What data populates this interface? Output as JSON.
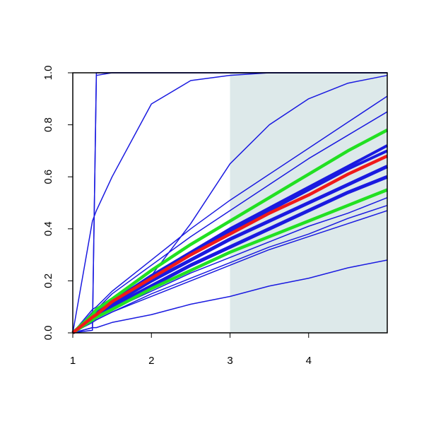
{
  "chart_data": {
    "type": "line",
    "x": [
      1,
      1.25,
      1.3,
      1.5,
      2,
      2.5,
      3,
      3.5,
      4,
      4.5,
      5
    ],
    "xlim": [
      1,
      5
    ],
    "xticks": [
      1,
      2,
      3,
      4
    ],
    "ylim": [
      0,
      1
    ],
    "yticks": [
      {
        "value": 0,
        "label": "0.0"
      },
      0.2,
      0.4,
      0.6,
      0.8,
      {
        "value": 1,
        "label": "1.0"
      }
    ],
    "shaded_xrange": [
      3,
      5
    ],
    "shade_color": "#dde9ea",
    "series": [
      {
        "color": "#1a1ae0",
        "width": 1.5,
        "values": [
          0,
          0.01,
          1,
          1,
          1,
          1,
          1,
          1,
          1,
          1,
          1
        ]
      },
      {
        "color": "#1a1ae0",
        "width": 1.5,
        "values": [
          0,
          0.02,
          0.99,
          1,
          1,
          1,
          1,
          1,
          1,
          1,
          1
        ]
      },
      {
        "color": "#1a1ae0",
        "width": 1.5,
        "values": [
          0,
          0.43,
          0.47,
          0.6,
          0.88,
          0.97,
          0.99,
          1,
          1,
          1,
          1
        ]
      },
      {
        "color": "#1a1ae0",
        "width": 1.5,
        "values": [
          0,
          0.05,
          0.06,
          0.1,
          0.22,
          0.42,
          0.65,
          0.8,
          0.9,
          0.96,
          0.99
        ]
      },
      {
        "color": "#1a1ae0",
        "width": 1.5,
        "values": [
          0,
          0.09,
          0.1,
          0.16,
          0.28,
          0.4,
          0.51,
          0.61,
          0.71,
          0.81,
          0.91
        ]
      },
      {
        "color": "#1a1ae0",
        "width": 1.5,
        "values": [
          0,
          0.08,
          0.09,
          0.15,
          0.26,
          0.37,
          0.47,
          0.57,
          0.67,
          0.76,
          0.85
        ]
      },
      {
        "color": "#1a1ae0",
        "width": 4,
        "values": [
          0,
          0.07,
          0.08,
          0.12,
          0.22,
          0.31,
          0.4,
          0.48,
          0.56,
          0.64,
          0.72
        ]
      },
      {
        "color": "#1a1ae0",
        "width": 4,
        "values": [
          0,
          0.07,
          0.08,
          0.12,
          0.22,
          0.3,
          0.39,
          0.47,
          0.55,
          0.63,
          0.7
        ]
      },
      {
        "color": "#1a1ae0",
        "width": 5,
        "values": [
          0,
          0.06,
          0.07,
          0.11,
          0.2,
          0.28,
          0.36,
          0.43,
          0.5,
          0.57,
          0.64
        ]
      },
      {
        "color": "#1a1ae0",
        "width": 5,
        "values": [
          0,
          0.06,
          0.07,
          0.1,
          0.18,
          0.26,
          0.33,
          0.4,
          0.47,
          0.54,
          0.6
        ]
      },
      {
        "color": "#1a1ae0",
        "width": 1.5,
        "values": [
          0,
          0.05,
          0.06,
          0.09,
          0.16,
          0.23,
          0.29,
          0.35,
          0.41,
          0.46,
          0.52
        ]
      },
      {
        "color": "#1a1ae0",
        "width": 1.5,
        "values": [
          0,
          0.05,
          0.05,
          0.08,
          0.15,
          0.21,
          0.27,
          0.33,
          0.38,
          0.44,
          0.49
        ]
      },
      {
        "color": "#1a1ae0",
        "width": 1.5,
        "values": [
          0,
          0.04,
          0.05,
          0.08,
          0.14,
          0.2,
          0.26,
          0.32,
          0.37,
          0.42,
          0.47
        ]
      },
      {
        "color": "#1a1ae0",
        "width": 1.5,
        "values": [
          0,
          0.02,
          0.02,
          0.04,
          0.07,
          0.11,
          0.14,
          0.18,
          0.21,
          0.25,
          0.28
        ]
      },
      {
        "color": "#22e022",
        "width": 4.5,
        "values": [
          0,
          0.07,
          0.09,
          0.13,
          0.24,
          0.34,
          0.43,
          0.52,
          0.61,
          0.7,
          0.78
        ]
      },
      {
        "color": "#22e022",
        "width": 4.5,
        "values": [
          0,
          0.05,
          0.06,
          0.09,
          0.17,
          0.24,
          0.31,
          0.37,
          0.43,
          0.49,
          0.55
        ]
      },
      {
        "color": "#f01a1a",
        "width": 4.5,
        "values": [
          0,
          0.06,
          0.07,
          0.12,
          0.21,
          0.3,
          0.38,
          0.46,
          0.53,
          0.61,
          0.68
        ]
      }
    ]
  }
}
